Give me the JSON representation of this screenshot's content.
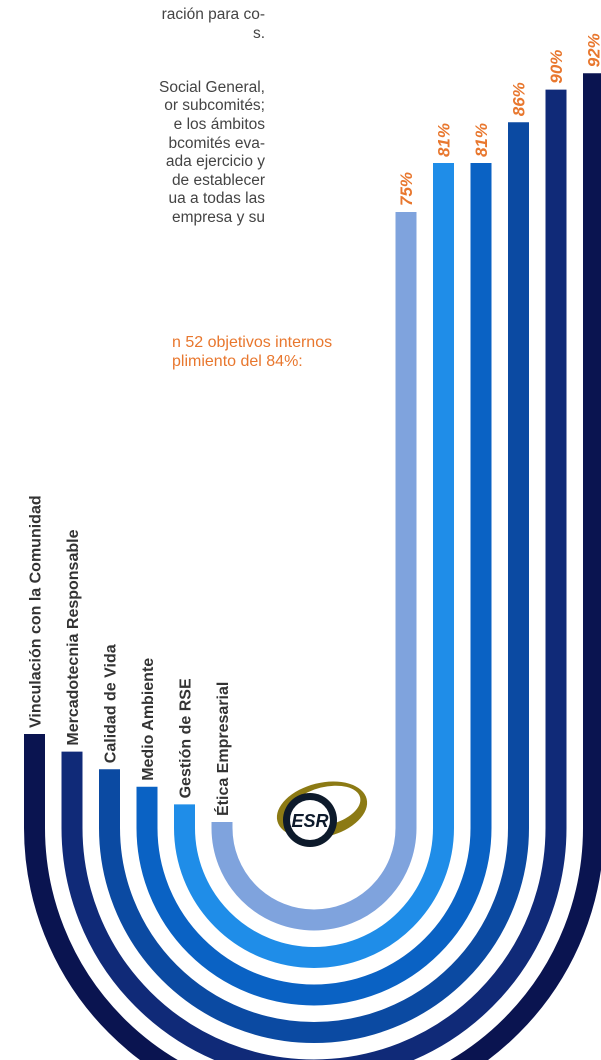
{
  "text": {
    "lines_top": [
      "ración para co-",
      "s."
    ],
    "lines_mid": [
      "Social General,",
      "or subcomités;",
      "e los ámbitos",
      "bcomités eva-",
      "ada ejercicio y",
      "de establecer",
      "ua a todas las",
      "empresa y su"
    ],
    "highlight": [
      "n 52 objetivos internos",
      "plimiento del 84%:"
    ]
  },
  "logo": {
    "text": "ESR",
    "icon": "esr-logo-icon"
  },
  "colors": {
    "label_color": "#333333",
    "value_color": "#e8772e",
    "highlight_color": "#e8772e",
    "body_text_color": "#444444"
  },
  "chart_data": {
    "type": "bar",
    "title": "",
    "unit": "%",
    "categories": [
      "Vinculación con la Comunidad",
      "Mercadotecnia Responsable",
      "Calidad de Vida",
      "Medio Ambiente",
      "Gestión de RSE",
      "Ética Empresarial"
    ],
    "values": [
      92,
      90,
      86,
      81,
      81,
      75
    ],
    "value_labels": [
      "92%",
      "90%",
      "86%",
      "81%",
      "81%",
      "75%"
    ],
    "colors": [
      "#0a1450",
      "#102a78",
      "#0b4aa2",
      "#0a62c4",
      "#1f8de8",
      "#7fa3dd"
    ],
    "ylim": [
      0,
      100
    ],
    "grid": false,
    "legend": "none"
  }
}
